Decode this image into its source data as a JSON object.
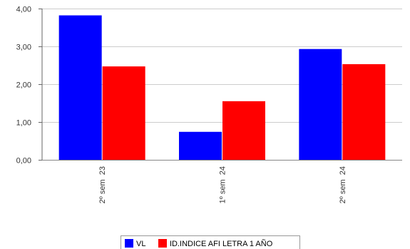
{
  "chart_data": {
    "type": "bar",
    "categories": [
      "2º sem  23",
      "1º sem  24",
      "2º sem  24"
    ],
    "series": [
      {
        "name": "VL",
        "values": [
          3.82,
          0.74,
          2.93
        ],
        "color": "#0000ff"
      },
      {
        "name": "ID.INDICE AFI LETRA 1 AÑO",
        "values": [
          2.47,
          1.55,
          2.53
        ],
        "color": "#ff0000"
      }
    ],
    "ylim": [
      0,
      4
    ],
    "yticks": [
      "0,00",
      "1,00",
      "2,00",
      "3,00",
      "4,00"
    ],
    "grid": true,
    "legend_position": "bottom",
    "title": "",
    "xlabel": "",
    "ylabel": ""
  }
}
